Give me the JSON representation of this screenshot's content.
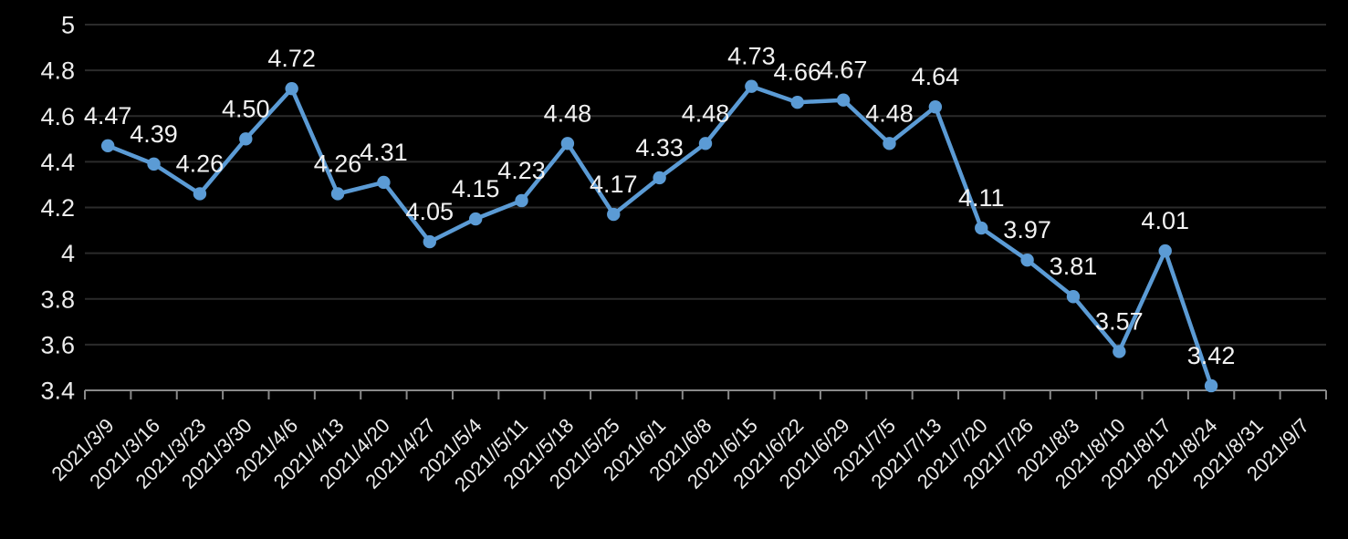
{
  "chart_style": {
    "background_color": "#000000",
    "line_color": "#5B9BD5",
    "marker_color": "#5B9BD5",
    "grid_color": "#2B2B2B",
    "axis_color": "#898989",
    "text_color": "#ECECEC",
    "data_label_color": "#F2F2F2"
  },
  "chart_data": {
    "type": "line",
    "title": "",
    "xlabel": "",
    "ylabel": "",
    "legend": "none",
    "grid": true,
    "markers": true,
    "ylim": [
      3.4,
      5
    ],
    "ytick_step": 0.2,
    "y_ticks": [
      "5",
      "4.8",
      "4.6",
      "4.4",
      "4.2",
      "4",
      "3.8",
      "3.6",
      "3.4"
    ],
    "categories": [
      "2021/3/9",
      "2021/3/16",
      "2021/3/23",
      "2021/3/30",
      "2021/4/6",
      "2021/4/13",
      "2021/4/20",
      "2021/4/27",
      "2021/5/4",
      "2021//5/11",
      "2021/5/18",
      "2021/5/25",
      "2021/6/1",
      "2021/6/8",
      "2021/6/15",
      "2021/6/22",
      "2021/6/29",
      "2021/7/5",
      "2021/7/13",
      "2021/7/20",
      "2021/7/26",
      "2021/8/3",
      "2021/8/10",
      "2021/8/17",
      "2021/8/24",
      "2021/8/31",
      "2021/9/7"
    ],
    "values": [
      4.47,
      4.39,
      4.26,
      4.5,
      4.72,
      4.26,
      4.31,
      4.05,
      4.15,
      4.23,
      4.48,
      4.17,
      4.33,
      4.48,
      4.73,
      4.66,
      4.67,
      4.48,
      4.64,
      4.11,
      3.97,
      3.81,
      3.57,
      4.01,
      3.42,
      null,
      null
    ],
    "point_labels": [
      "4.47",
      "4.39",
      "4.26",
      "4.50",
      "4.72",
      "4.26",
      "4.31",
      "4.05",
      "4.15",
      "4.23",
      "4.48",
      "4.17",
      "4.33",
      "4.48",
      "4.73",
      "4.66",
      "4.67",
      "4.48",
      "4.64",
      "4.11",
      "3.97",
      "3.81",
      "3.57",
      "4.01",
      "3.42",
      null,
      null
    ]
  }
}
